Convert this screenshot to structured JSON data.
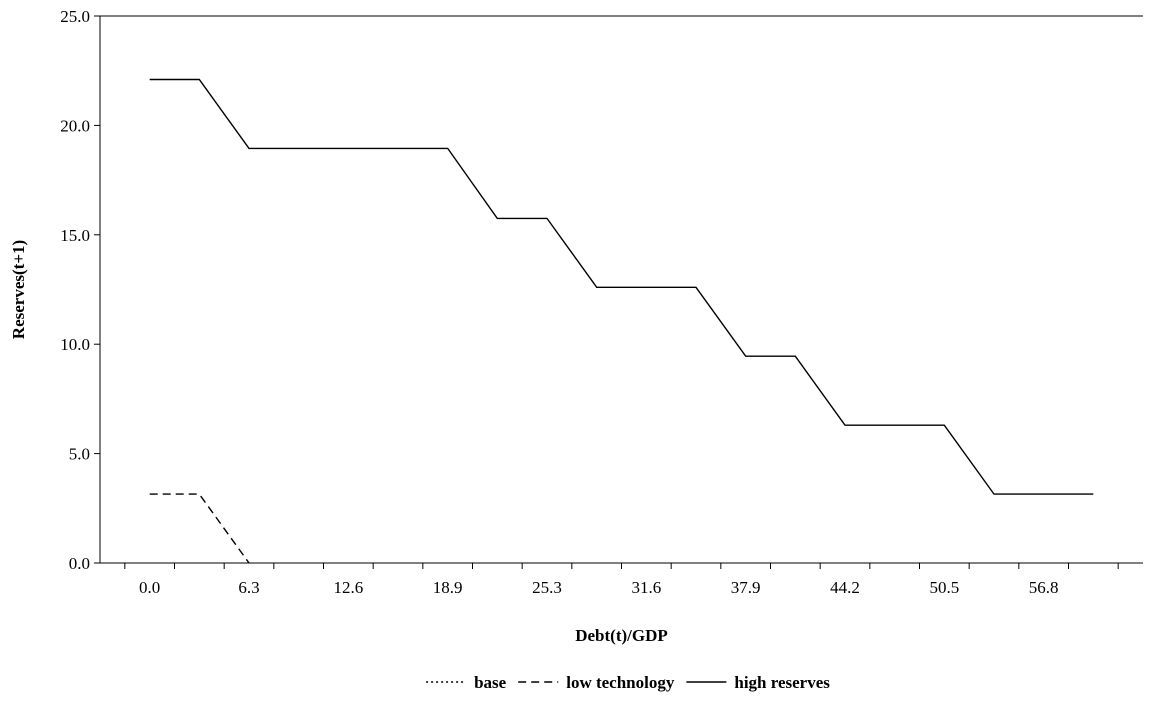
{
  "chart_data": {
    "type": "line",
    "title": "",
    "xlabel": "Debt(t)/GDP",
    "ylabel": "Reserves(t+1)",
    "ylim": [
      0,
      25
    ],
    "yticks": [
      "0.0",
      "5.0",
      "10.0",
      "15.0",
      "20.0",
      "25.0"
    ],
    "xticks": [
      "0.0",
      "6.3",
      "12.6",
      "18.9",
      "25.3",
      "31.6",
      "37.9",
      "44.2",
      "50.5",
      "56.8"
    ],
    "xtick_positions": [
      0,
      2,
      4,
      6,
      8,
      10,
      12,
      14,
      16,
      18
    ],
    "xlim": [
      -1,
      20
    ],
    "grid": false,
    "legend_position": "bottom",
    "series": [
      {
        "name": "base",
        "style": "dotted",
        "x": [],
        "y": []
      },
      {
        "name": "low technology",
        "style": "dashed",
        "x": [
          0,
          1,
          2
        ],
        "y": [
          3.15,
          3.15,
          0
        ]
      },
      {
        "name": "high reserves",
        "style": "solid",
        "x": [
          0,
          1,
          2,
          3,
          4,
          5,
          6,
          7,
          8,
          9,
          10,
          11,
          12,
          13,
          14,
          15,
          16,
          17,
          18,
          19
        ],
        "y": [
          22.1,
          22.1,
          18.95,
          18.95,
          18.95,
          18.95,
          18.95,
          15.75,
          15.75,
          12.6,
          12.6,
          12.6,
          9.45,
          9.45,
          6.3,
          6.3,
          6.3,
          3.15,
          3.15,
          3.15
        ]
      }
    ]
  }
}
